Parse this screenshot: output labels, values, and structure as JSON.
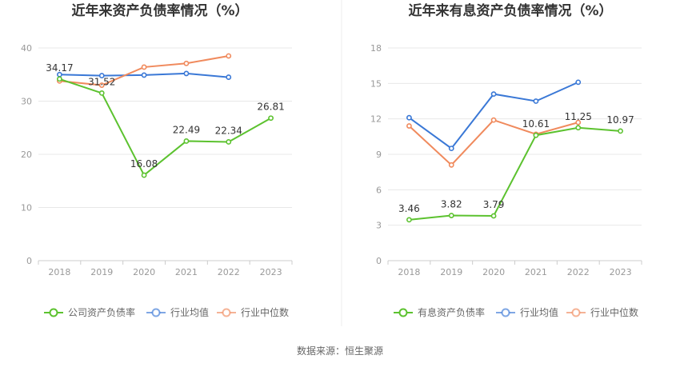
{
  "footer": "数据来源：恒生聚源",
  "chart_data": [
    {
      "type": "line",
      "title": "近年来资产负债率情况（%）",
      "xlabel": "",
      "ylabel": "",
      "x": [
        "2018",
        "2019",
        "2020",
        "2021",
        "2022",
        "2023"
      ],
      "ylim": [
        0,
        40
      ],
      "yticks": [
        0,
        10,
        20,
        30,
        40
      ],
      "grid": true,
      "legend_position": "bottom",
      "series": [
        {
          "name": "公司资产负债率",
          "color": "#5cc22f",
          "values": [
            34.17,
            31.52,
            16.08,
            22.49,
            22.34,
            26.81
          ],
          "labels": [
            "34.17",
            "31.52",
            "16.08",
            "22.49",
            "22.34",
            "26.81"
          ]
        },
        {
          "name": "行业均值",
          "color": "#3a78d6",
          "values": [
            35.0,
            34.8,
            34.9,
            35.2,
            34.5,
            null
          ]
        },
        {
          "name": "行业中位数",
          "color": "#f08a5d",
          "values": [
            33.8,
            33.0,
            36.4,
            37.1,
            38.5,
            null
          ]
        }
      ]
    },
    {
      "type": "line",
      "title": "近年来有息资产负债率情况（%）",
      "xlabel": "",
      "ylabel": "",
      "x": [
        "2018",
        "2019",
        "2020",
        "2021",
        "2022",
        "2023"
      ],
      "ylim": [
        0,
        18
      ],
      "yticks": [
        0,
        3,
        6,
        9,
        12,
        15,
        18
      ],
      "grid": true,
      "legend_position": "bottom",
      "series": [
        {
          "name": "有息资产负债率",
          "color": "#5cc22f",
          "values": [
            3.46,
            3.82,
            3.79,
            10.61,
            11.25,
            10.97
          ],
          "labels": [
            "3.46",
            "3.82",
            "3.79",
            "10.61",
            "11.25",
            "10.97"
          ]
        },
        {
          "name": "行业均值",
          "color": "#3a78d6",
          "values": [
            12.1,
            9.5,
            14.1,
            13.5,
            15.1,
            null
          ]
        },
        {
          "name": "行业中位数",
          "color": "#f08a5d",
          "values": [
            11.4,
            8.1,
            11.9,
            10.7,
            11.7,
            null
          ]
        }
      ]
    }
  ]
}
